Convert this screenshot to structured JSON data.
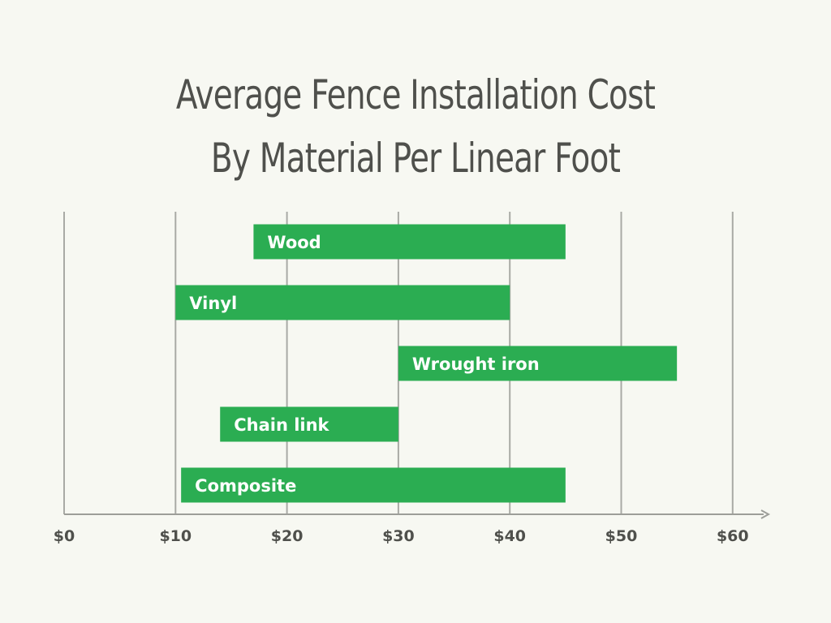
{
  "title_lines": [
    "Average Fence Installation Cost",
    "By Material Per Linear Foot"
  ],
  "colors": {
    "background": "#f7f8f2",
    "bar": "#2bad52",
    "bar_label": "#ffffff",
    "text": "#4f504c",
    "grid": "#a9aaa5",
    "axis": "#9d9e99"
  },
  "chart_data": {
    "type": "bar",
    "orientation": "horizontal",
    "style": "floating range bars",
    "title": "Average Fence Installation Cost By Material Per Linear Foot",
    "categories": [
      "Wood",
      "Vinyl",
      "Wrought iron",
      "Chain link",
      "Composite"
    ],
    "series": [
      {
        "ranges": [
          [
            17,
            45
          ],
          [
            10,
            40
          ],
          [
            30,
            55
          ],
          [
            14,
            30
          ],
          [
            10.5,
            45
          ]
        ]
      }
    ],
    "xlim": [
      0,
      60
    ],
    "xticks": [
      0,
      10,
      20,
      30,
      40,
      50,
      60
    ],
    "xtick_labels": [
      "$0",
      "$10",
      "$20",
      "$30",
      "$40",
      "$50",
      "$60"
    ],
    "grid": "vertical lines on",
    "legend": "none",
    "bar_labels": "inside bars, left aligned"
  }
}
